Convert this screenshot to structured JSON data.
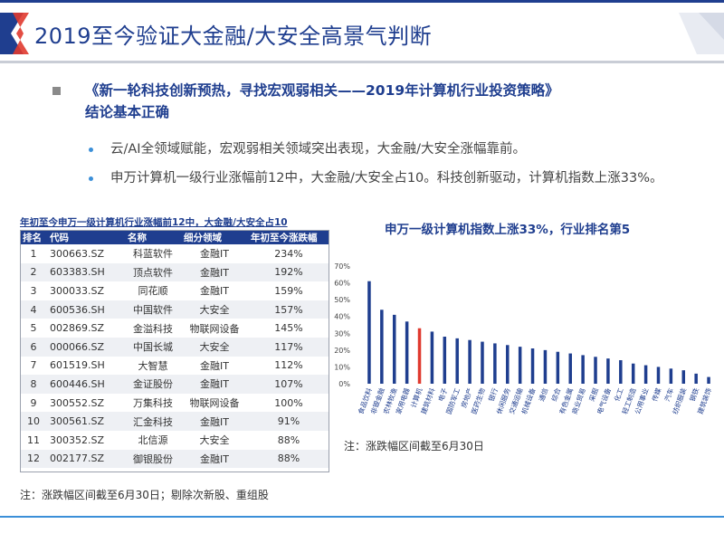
{
  "slide": {
    "title": "2019至今验证大金融/大安全高景气判断"
  },
  "bullets": {
    "main_line1": "《新一轮科技创新预热，寻找宏观弱相关——2019年计算机行业投资策略》",
    "main_line2": "结论基本正确",
    "sub1": "云/AI全领域赋能，宏观弱相关领域突出表现，大金融/大安全涨幅靠前。",
    "sub2": "申万计算机一级行业涨幅前12中，大金融/大安全占10。科技创新驱动，计算机指数上涨33%。"
  },
  "table": {
    "title": "年初至今申万一级计算机行业涨幅前12中，大金融/大安全占10",
    "headers": [
      "排名",
      "代码",
      "名称",
      "细分领域",
      "年初至今涨跌幅"
    ],
    "rows": [
      [
        "1",
        "300663.SZ",
        "科蓝软件",
        "金融IT",
        "234%"
      ],
      [
        "2",
        "603383.SH",
        "顶点软件",
        "金融IT",
        "192%"
      ],
      [
        "3",
        "300033.SZ",
        "同花顺",
        "金融IT",
        "159%"
      ],
      [
        "4",
        "600536.SH",
        "中国软件",
        "大安全",
        "157%"
      ],
      [
        "5",
        "002869.SZ",
        "金溢科技",
        "物联网设备",
        "145%"
      ],
      [
        "6",
        "000066.SZ",
        "中国长城",
        "大安全",
        "117%"
      ],
      [
        "7",
        "601519.SH",
        "大智慧",
        "金融IT",
        "112%"
      ],
      [
        "8",
        "600446.SH",
        "金证股份",
        "金融IT",
        "107%"
      ],
      [
        "9",
        "300552.SZ",
        "万集科技",
        "物联网设备",
        "100%"
      ],
      [
        "10",
        "300561.SZ",
        "汇金科技",
        "金融IT",
        "91%"
      ],
      [
        "11",
        "300352.SZ",
        "北信源",
        "大安全",
        "88%"
      ],
      [
        "12",
        "002177.SZ",
        "御银股份",
        "金融IT",
        "88%"
      ]
    ]
  },
  "notes": {
    "left": "注：涨跌幅区间截至6月30日；剔除次新股、重组股",
    "right": "注：涨跌幅区间截至6月30日"
  },
  "colors": {
    "brand": "#1f3e8f",
    "highlight": "#e03a2f",
    "accent": "#3b8fd8"
  },
  "chart_data": {
    "type": "bar",
    "title": "申万一级计算机指数上涨33%，行业排名第5",
    "categories": [
      "食品饮料",
      "非银金融",
      "农林牧渔",
      "家用电器",
      "计算机",
      "建筑材料",
      "电子",
      "国防军工",
      "房地产",
      "医药生物",
      "银行",
      "休闲服务",
      "交通运输",
      "机械设备",
      "通信",
      "综合",
      "有色金属",
      "商业贸易",
      "采掘",
      "电气设备",
      "化工",
      "轻工制造",
      "公用事业",
      "传媒",
      "汽车",
      "纺织服装",
      "钢铁",
      "建筑装饰"
    ],
    "values": [
      61,
      44,
      41,
      37,
      33,
      31,
      28,
      27,
      26,
      25,
      24,
      23,
      22,
      21,
      20,
      19,
      18,
      17,
      16,
      15,
      14,
      12,
      11,
      10,
      9,
      8,
      6,
      4
    ],
    "highlight_category": "计算机",
    "ylim": [
      0,
      70
    ],
    "yticks": [
      "0%",
      "10%",
      "20%",
      "30%",
      "40%",
      "50%",
      "60%",
      "70%"
    ],
    "grid": false,
    "legend": "none"
  }
}
